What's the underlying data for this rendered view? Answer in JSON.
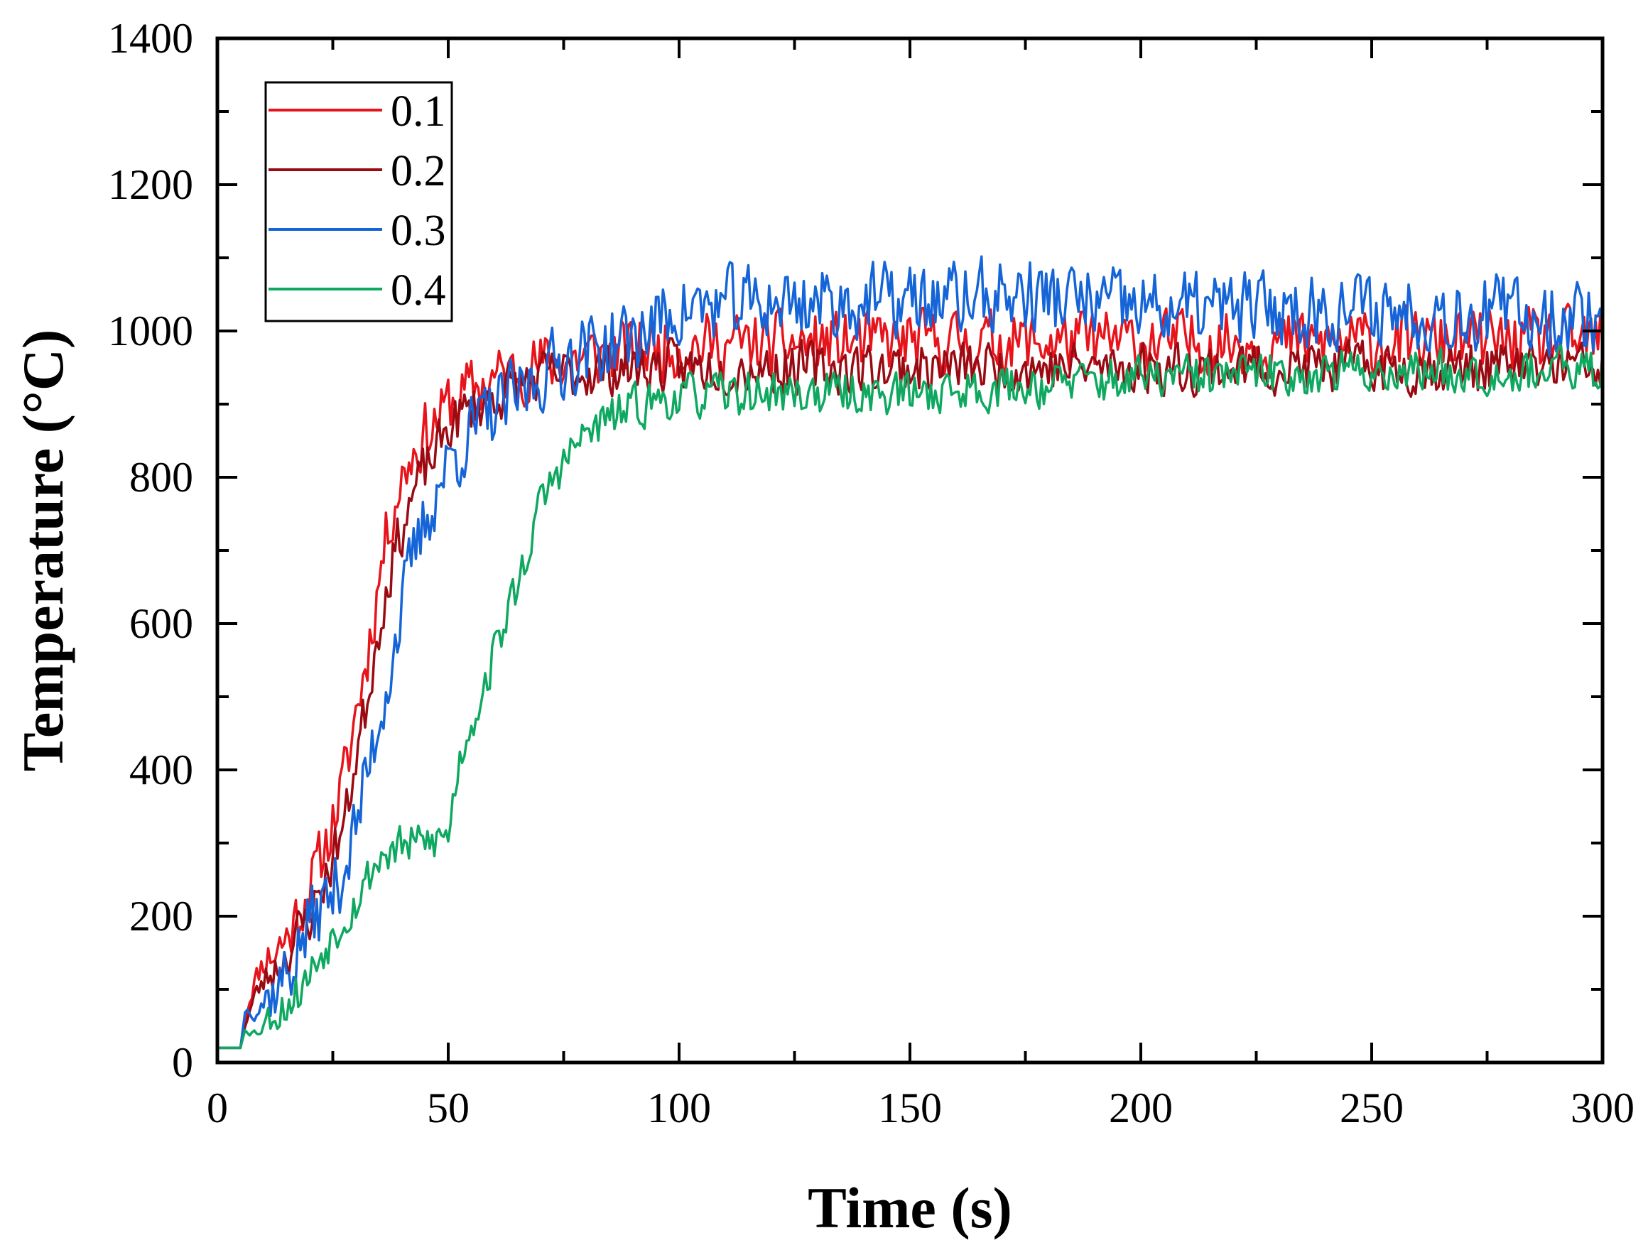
{
  "chart_data": {
    "type": "line",
    "title": "",
    "xlabel": "Time (s)",
    "ylabel": "Temperature (°C)",
    "xlim": [
      0,
      300
    ],
    "ylim": [
      0,
      1400
    ],
    "x_ticks": [
      0,
      50,
      100,
      150,
      200,
      250,
      300
    ],
    "y_ticks": [
      0,
      200,
      400,
      600,
      800,
      1000,
      1200,
      1400
    ],
    "x_tick_labels": [
      "0",
      "50",
      "100",
      "150",
      "200",
      "250",
      "300"
    ],
    "y_tick_labels": [
      "0",
      "200",
      "400",
      "600",
      "800",
      "1000",
      "1200",
      "1400"
    ],
    "grid": false,
    "legend_position": "top-left",
    "series": [
      {
        "name": "0.1",
        "color": "#e8141c",
        "points": [
          [
            0,
            20
          ],
          [
            5,
            20
          ],
          [
            6,
            60
          ],
          [
            8,
            110
          ],
          [
            10,
            140
          ],
          [
            12,
            150
          ],
          [
            15,
            170
          ],
          [
            18,
            210
          ],
          [
            20,
            240
          ],
          [
            22,
            270
          ],
          [
            25,
            330
          ],
          [
            28,
            400
          ],
          [
            30,
            480
          ],
          [
            32,
            540
          ],
          [
            34,
            620
          ],
          [
            36,
            700
          ],
          [
            38,
            760
          ],
          [
            40,
            800
          ],
          [
            42,
            830
          ],
          [
            45,
            860
          ],
          [
            48,
            880
          ],
          [
            50,
            900
          ],
          [
            55,
            920
          ],
          [
            60,
            935
          ],
          [
            65,
            945
          ],
          [
            70,
            955
          ],
          [
            75,
            960
          ],
          [
            80,
            965
          ],
          [
            85,
            970
          ],
          [
            90,
            975
          ],
          [
            100,
            980
          ],
          [
            150,
            985
          ],
          [
            200,
            985
          ],
          [
            250,
            985
          ],
          [
            300,
            985
          ]
        ],
        "noise": 55,
        "noise_seed": 11
      },
      {
        "name": "0.2",
        "color": "#9a0a12",
        "points": [
          [
            0,
            20
          ],
          [
            5,
            20
          ],
          [
            6,
            50
          ],
          [
            8,
            90
          ],
          [
            10,
            110
          ],
          [
            12,
            125
          ],
          [
            15,
            150
          ],
          [
            18,
            180
          ],
          [
            20,
            200
          ],
          [
            22,
            230
          ],
          [
            25,
            280
          ],
          [
            28,
            340
          ],
          [
            30,
            420
          ],
          [
            32,
            480
          ],
          [
            34,
            560
          ],
          [
            36,
            630
          ],
          [
            38,
            690
          ],
          [
            40,
            730
          ],
          [
            42,
            770
          ],
          [
            45,
            810
          ],
          [
            48,
            840
          ],
          [
            50,
            870
          ],
          [
            55,
            895
          ],
          [
            60,
            910
          ],
          [
            65,
            925
          ],
          [
            70,
            935
          ],
          [
            75,
            940
          ],
          [
            80,
            945
          ],
          [
            90,
            950
          ],
          [
            100,
            950
          ],
          [
            150,
            950
          ],
          [
            200,
            950
          ],
          [
            250,
            950
          ],
          [
            300,
            950
          ]
        ],
        "noise": 45,
        "noise_seed": 23
      },
      {
        "name": "0.3",
        "color": "#1565d8",
        "points": [
          [
            0,
            20
          ],
          [
            5,
            20
          ],
          [
            6,
            70
          ],
          [
            8,
            75
          ],
          [
            10,
            85
          ],
          [
            12,
            95
          ],
          [
            15,
            120
          ],
          [
            18,
            160
          ],
          [
            20,
            190
          ],
          [
            22,
            210
          ],
          [
            25,
            230
          ],
          [
            28,
            280
          ],
          [
            30,
            320
          ],
          [
            32,
            380
          ],
          [
            34,
            440
          ],
          [
            36,
            500
          ],
          [
            38,
            560
          ],
          [
            40,
            620
          ],
          [
            42,
            680
          ],
          [
            45,
            740
          ],
          [
            48,
            790
          ],
          [
            50,
            820
          ],
          [
            55,
            860
          ],
          [
            60,
            890
          ],
          [
            65,
            910
          ],
          [
            70,
            940
          ],
          [
            75,
            960
          ],
          [
            80,
            975
          ],
          [
            90,
            990
          ],
          [
            95,
            1010
          ],
          [
            100,
            1030
          ],
          [
            120,
            1040
          ],
          [
            150,
            1040
          ],
          [
            175,
            1050
          ],
          [
            200,
            1030
          ],
          [
            250,
            1030
          ],
          [
            300,
            1020
          ]
        ],
        "noise": 65,
        "noise_seed": 37
      },
      {
        "name": "0.4",
        "color": "#0fa860",
        "points": [
          [
            0,
            20
          ],
          [
            5,
            20
          ],
          [
            6,
            45
          ],
          [
            8,
            40
          ],
          [
            10,
            55
          ],
          [
            12,
            65
          ],
          [
            15,
            80
          ],
          [
            18,
            100
          ],
          [
            20,
            120
          ],
          [
            22,
            145
          ],
          [
            25,
            175
          ],
          [
            28,
            205
          ],
          [
            30,
            220
          ],
          [
            32,
            245
          ],
          [
            34,
            270
          ],
          [
            36,
            285
          ],
          [
            40,
            295
          ],
          [
            45,
            300
          ],
          [
            50,
            310
          ],
          [
            52,
            400
          ],
          [
            54,
            450
          ],
          [
            56,
            480
          ],
          [
            58,
            520
          ],
          [
            60,
            560
          ],
          [
            62,
            600
          ],
          [
            65,
            650
          ],
          [
            68,
            720
          ],
          [
            70,
            760
          ],
          [
            72,
            790
          ],
          [
            75,
            820
          ],
          [
            78,
            845
          ],
          [
            80,
            860
          ],
          [
            85,
            880
          ],
          [
            90,
            895
          ],
          [
            95,
            905
          ],
          [
            100,
            910
          ],
          [
            120,
            915
          ],
          [
            150,
            915
          ],
          [
            200,
            935
          ],
          [
            250,
            945
          ],
          [
            300,
            945
          ]
        ],
        "noise": 38,
        "noise_seed": 53
      }
    ]
  }
}
